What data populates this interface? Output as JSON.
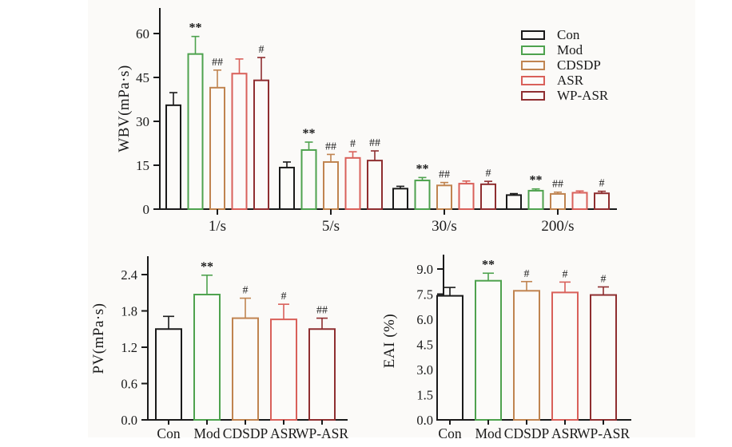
{
  "figure": {
    "panel_bg": "#fbfaf8",
    "bar_fill": "#fcfbf9",
    "axis_color": "#1a1a1a",
    "star_annotation_color": "#111111",
    "hash_annotation_color": "#3a3a3a"
  },
  "legend": {
    "items": [
      {
        "label": "Con",
        "color": "#1a1a1a"
      },
      {
        "label": "Mod",
        "color": "#4ea24e"
      },
      {
        "label": "CDSDP",
        "color": "#c08450"
      },
      {
        "label": "ASR",
        "color": "#d9605a"
      },
      {
        "label": "WP-ASR",
        "color": "#8f2e30"
      }
    ]
  },
  "chart_data": [
    {
      "id": "wbv",
      "type": "bar",
      "title": "",
      "xlabel": "",
      "ylabel": "WBV(mPa·s)",
      "ylim": [
        0,
        68
      ],
      "grid": false,
      "legend_position": "top-right",
      "yticks": [
        {
          "value": 0,
          "label": "0"
        },
        {
          "value": 15,
          "label": "15"
        },
        {
          "value": 30,
          "label": "30"
        },
        {
          "value": 45,
          "label": "45"
        },
        {
          "value": 60,
          "label": "60"
        }
      ],
      "categories": [
        "1/s",
        "5/s",
        "30/s",
        "200/s"
      ],
      "series": [
        {
          "name": "Con",
          "color": "#1a1a1a",
          "values": [
            35.5,
            14.2,
            7.0,
            4.8
          ],
          "errors": [
            4.3,
            1.9,
            0.8,
            0.5
          ],
          "annotations": [
            "",
            "",
            "",
            ""
          ]
        },
        {
          "name": "Mod",
          "color": "#4ea24e",
          "values": [
            53.0,
            20.2,
            9.8,
            6.3
          ],
          "errors": [
            6.0,
            2.7,
            1.0,
            0.6
          ],
          "annotations": [
            "**",
            "**",
            "**",
            "**"
          ]
        },
        {
          "name": "CDSDP",
          "color": "#c08450",
          "values": [
            41.5,
            16.1,
            8.1,
            5.2
          ],
          "errors": [
            6.0,
            2.6,
            1.0,
            0.6
          ],
          "annotations": [
            "##",
            "##",
            "##",
            "##"
          ]
        },
        {
          "name": "ASR",
          "color": "#d9605a",
          "values": [
            46.3,
            17.5,
            8.7,
            5.6
          ],
          "errors": [
            5.0,
            2.1,
            0.9,
            0.6
          ],
          "annotations": [
            "",
            "#",
            "",
            ""
          ]
        },
        {
          "name": "WP-ASR",
          "color": "#8f2e30",
          "values": [
            44.0,
            16.6,
            8.5,
            5.4
          ],
          "errors": [
            7.8,
            3.3,
            1.0,
            0.7
          ],
          "annotations": [
            "#",
            "##",
            "#",
            "#"
          ]
        }
      ]
    },
    {
      "id": "pv",
      "type": "bar",
      "title": "",
      "xlabel": "",
      "ylabel": "PV(mPa·s)",
      "ylim": [
        0,
        2.7
      ],
      "grid": false,
      "yticks": [
        {
          "value": 0.0,
          "label": "0.0"
        },
        {
          "value": 0.6,
          "label": "0.6"
        },
        {
          "value": 1.2,
          "label": "1.2"
        },
        {
          "value": 1.8,
          "label": "1.8"
        },
        {
          "value": 2.4,
          "label": "2.4"
        }
      ],
      "categories": [
        "Con",
        "Mod",
        "CDSDP",
        "ASR",
        "WP-ASR"
      ],
      "bars": [
        {
          "label": "Con",
          "color": "#1a1a1a",
          "value": 1.5,
          "error": 0.21,
          "annotation": ""
        },
        {
          "label": "Mod",
          "color": "#4ea24e",
          "value": 2.07,
          "error": 0.32,
          "annotation": "**"
        },
        {
          "label": "CDSDP",
          "color": "#c08450",
          "value": 1.68,
          "error": 0.33,
          "annotation": "#"
        },
        {
          "label": "ASR",
          "color": "#d9605a",
          "value": 1.66,
          "error": 0.25,
          "annotation": "#"
        },
        {
          "label": "WP-ASR",
          "color": "#8f2e30",
          "value": 1.5,
          "error": 0.18,
          "annotation": "##"
        }
      ]
    },
    {
      "id": "eai",
      "type": "bar",
      "title": "",
      "xlabel": "",
      "ylabel": "EAI (%)",
      "ylim": [
        0,
        9.9
      ],
      "grid": false,
      "yticks": [
        {
          "value": 0.0,
          "label": "0.0"
        },
        {
          "value": 1.5,
          "label": "1.5"
        },
        {
          "value": 3.0,
          "label": "3.0"
        },
        {
          "value": 4.5,
          "label": "4.5"
        },
        {
          "value": 6.0,
          "label": "6.0"
        },
        {
          "value": 7.5,
          "label": "7.5"
        },
        {
          "value": 9.0,
          "label": "9.0"
        }
      ],
      "categories": [
        "Con",
        "Mod",
        "CDSDP",
        "ASR",
        "WP-ASR"
      ],
      "bars": [
        {
          "label": "Con",
          "color": "#1a1a1a",
          "value": 7.4,
          "error": 0.5,
          "annotation": ""
        },
        {
          "label": "Mod",
          "color": "#4ea24e",
          "value": 8.3,
          "error": 0.45,
          "annotation": "**"
        },
        {
          "label": "CDSDP",
          "color": "#c08450",
          "value": 7.7,
          "error": 0.55,
          "annotation": "#"
        },
        {
          "label": "ASR",
          "color": "#d9605a",
          "value": 7.6,
          "error": 0.62,
          "annotation": "#"
        },
        {
          "label": "WP-ASR",
          "color": "#8f2e30",
          "value": 7.45,
          "error": 0.48,
          "annotation": "#"
        }
      ]
    }
  ]
}
